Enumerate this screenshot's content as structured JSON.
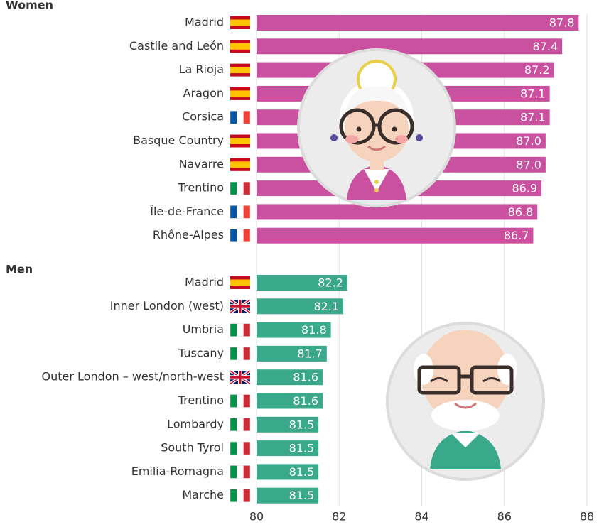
{
  "chart_data": [
    {
      "type": "bar",
      "orientation": "horizontal",
      "title": "Women",
      "categories": [
        "Madrid",
        "Castile and León",
        "La Rioja",
        "Aragon",
        "Corsica",
        "Basque Country",
        "Navarre",
        "Trentino",
        "Île-de-France",
        "Rhône-Alpes"
      ],
      "values": [
        87.8,
        87.4,
        87.2,
        87.1,
        87.1,
        87.0,
        87.0,
        86.9,
        86.8,
        86.7
      ],
      "value_labels": [
        "87.8",
        "87.4",
        "87.2",
        "87.1",
        "87.1",
        "87.0",
        "87.0",
        "86.9",
        "86.8",
        "86.7"
      ],
      "color": "#c9519f",
      "xlim": [
        80,
        88
      ],
      "grid": true
    },
    {
      "type": "bar",
      "orientation": "horizontal",
      "title": "Men",
      "categories": [
        "Madrid",
        "Inner London (west)",
        "Umbria",
        "Tuscany",
        "Outer London – west/north-west",
        "Trentino",
        "Lombardy",
        "South Tyrol",
        "Emilia-Romagna",
        "Marche"
      ],
      "values": [
        82.2,
        82.1,
        81.8,
        81.7,
        81.6,
        81.6,
        81.5,
        81.5,
        81.5,
        81.5
      ],
      "value_labels": [
        "82.2",
        "82.1",
        "81.8",
        "81.7",
        "81.6",
        "81.6",
        "81.5",
        "81.5",
        "81.5",
        "81.5"
      ],
      "color": "#3aa88a",
      "xlim": [
        80,
        88
      ],
      "xticks": [
        80,
        82,
        84,
        86,
        88
      ],
      "grid": true
    }
  ]
}
